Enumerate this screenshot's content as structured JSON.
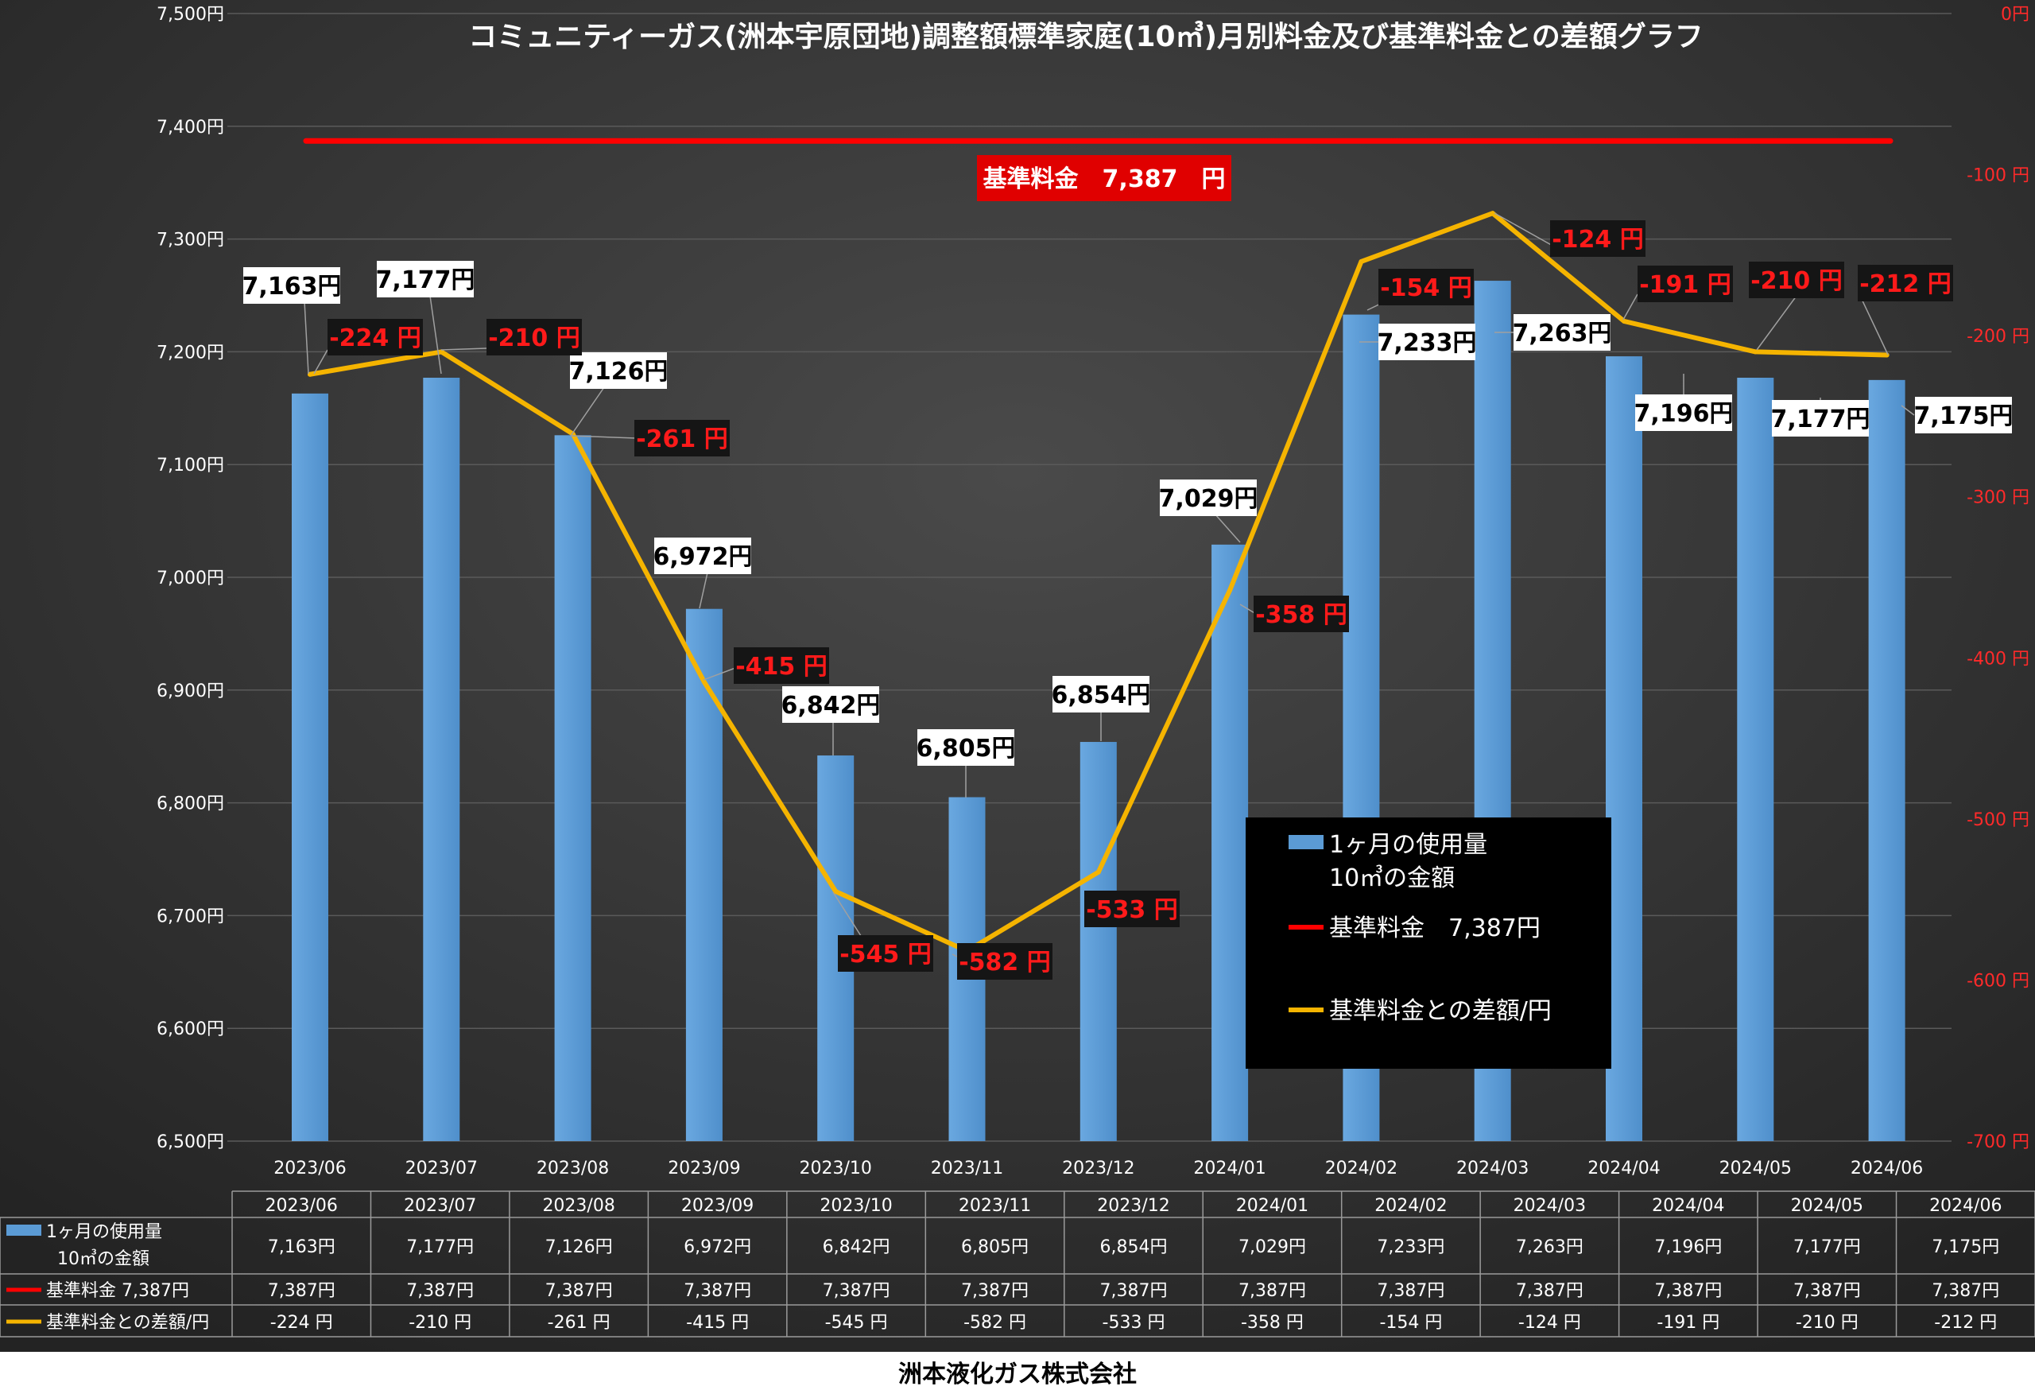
{
  "chart_data": {
    "type": "bar",
    "title": "コミュニティーガス(洲本宇原団地)調整額標準家庭(10㎥)月別料金及び基準料金との差額グラフ",
    "categories": [
      "2023/06",
      "2023/07",
      "2023/08",
      "2023/09",
      "2023/10",
      "2023/11",
      "2023/12",
      "2024/01",
      "2024/02",
      "2024/03",
      "2024/04",
      "2024/05",
      "2024/06"
    ],
    "series": [
      {
        "name": "1ヶ月の使用量 10㎥の金額",
        "table_name_lines": [
          "1ヶ月の使用量",
          "10㎥の金額"
        ],
        "type": "bar",
        "axis": "left",
        "color": "#5b9bd5",
        "values": [
          7163,
          7177,
          7126,
          6972,
          6842,
          6805,
          6854,
          7029,
          7233,
          7263,
          7196,
          7177,
          7175
        ],
        "labels": [
          "7,163円",
          "7,177円",
          "7,126円",
          "6,972円",
          "6,842円",
          "6,805円",
          "6,854円",
          "7,029円",
          "7,233円",
          "7,263円",
          "7,196円",
          "7,177円",
          "7,175円"
        ]
      },
      {
        "name": "基準料金 7,387円",
        "type": "line",
        "axis": "left",
        "color": "#ff0000",
        "values": [
          7387,
          7387,
          7387,
          7387,
          7387,
          7387,
          7387,
          7387,
          7387,
          7387,
          7387,
          7387,
          7387
        ],
        "labels": [
          "7,387円",
          "7,387円",
          "7,387円",
          "7,387円",
          "7,387円",
          "7,387円",
          "7,387円",
          "7,387円",
          "7,387円",
          "7,387円",
          "7,387円",
          "7,387円",
          "7,387円"
        ]
      },
      {
        "name": "基準料金との差額/円",
        "type": "line",
        "axis": "right",
        "color": "#f5b400",
        "values": [
          -224,
          -210,
          -261,
          -415,
          -545,
          -582,
          -533,
          -358,
          -154,
          -124,
          -191,
          -210,
          -212
        ],
        "labels": [
          "-224 円",
          "-210 円",
          "-261 円",
          "-415 円",
          "-545 円",
          "-582 円",
          "-533 円",
          "-358 円",
          "-154 円",
          "-124 円",
          "-191 円",
          "-210 円",
          "-212 円"
        ]
      }
    ],
    "y_left": {
      "range": [
        6500,
        7500
      ],
      "ticks": [
        7500,
        7400,
        7300,
        7200,
        7100,
        7000,
        6900,
        6800,
        6700,
        6600,
        6500
      ],
      "tick_labels": [
        "7,500円",
        "7,400円",
        "7,300円",
        "7,200円",
        "7,100円",
        "7,000円",
        "6,900円",
        "6,800円",
        "6,700円",
        "6,600円",
        "6,500円"
      ]
    },
    "y_right": {
      "range": [
        -700,
        0
      ],
      "ticks": [
        0,
        -100,
        -200,
        -300,
        -400,
        -500,
        -600,
        -700
      ],
      "tick_labels": [
        "0円",
        "-100 円",
        "-200 円",
        "-300 円",
        "-400 円",
        "-500 円",
        "-600 円",
        "-700 円"
      ]
    },
    "grid": true,
    "legend": {
      "placement": "center-right",
      "entries": [
        {
          "lines": [
            "1ヶ月の使用量",
            "10㎥の金額"
          ]
        },
        {
          "lines": [
            "基準料金　7,387円"
          ]
        },
        {
          "lines": [
            "基準料金との差額/円"
          ]
        }
      ]
    },
    "base_annotation": "基準料金　7,387　円",
    "data_table": true
  },
  "footer": "洲本液化ガス株式会社",
  "colors": {
    "panel_top": "#404040",
    "panel_bottom": "#262626",
    "bar": "#5b9bd5",
    "base_line": "#ff0000",
    "diff_line": "#f5b400",
    "right_axis_text": "#ff2a2a"
  }
}
